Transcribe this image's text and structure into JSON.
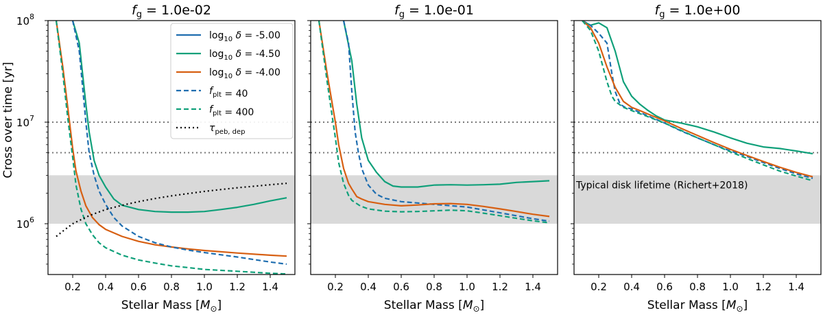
{
  "figure": {
    "ylabel": "Cross over time [yr]",
    "colors": {
      "blue": "#1f6eb0",
      "green": "#10a07a",
      "orange": "#d75f12",
      "gray_band": "#d9d9d9",
      "ref": "#777777",
      "tau": "#000000"
    }
  },
  "chart_data": [
    {
      "type": "line",
      "title_prefix": "f",
      "title_sub": "g",
      "title_value": "= 1.0e-02",
      "xlabel": "Stellar Mass [",
      "xlabel_sym": "M",
      "xlabel_sub": "⊙",
      "xlabel_end": "]",
      "xlim": [
        0.05,
        1.55
      ],
      "ylim_log10": [
        5.5,
        8
      ],
      "xticks": [
        0.2,
        0.4,
        0.6,
        0.8,
        1.0,
        1.2,
        1.4
      ],
      "xtick_labels": [
        "0.2",
        "0.4",
        "0.6",
        "0.8",
        "1.0",
        "1.2",
        "1.4"
      ],
      "yticks": [
        6,
        7,
        8
      ],
      "ytick_labels": [
        "10",
        "10",
        "10"
      ],
      "ytick_exps": [
        "6",
        "7",
        "8"
      ],
      "band": [
        1000000,
        3000000
      ],
      "ref_lines": [
        10000000,
        5000000
      ],
      "legend": {
        "entries": [
          {
            "prefix": "log",
            "sub": "10",
            "sym": " δ",
            "value": " = -5.00",
            "color": "blue",
            "style": "solid"
          },
          {
            "prefix": "log",
            "sub": "10",
            "sym": " δ",
            "value": " = -4.50",
            "color": "green",
            "style": "solid"
          },
          {
            "prefix": "log",
            "sub": "10",
            "sym": " δ",
            "value": " = -4.00",
            "color": "orange",
            "style": "solid"
          },
          {
            "prefix": "f",
            "sub": "plt",
            "sym": "",
            "value": " = 40",
            "color": "blue",
            "style": "dashed"
          },
          {
            "prefix": "f",
            "sub": "plt",
            "sym": "",
            "value": " = 400",
            "color": "green",
            "style": "dashed"
          },
          {
            "prefix": "τ",
            "sub": "peb, dep",
            "sym": "",
            "value": "",
            "color": "tau",
            "style": "dotted"
          }
        ]
      },
      "annotation": "",
      "series": [
        {
          "name": "log10 delta = -5.00 (hidden)",
          "color": "blue",
          "style": "solid",
          "x": [
            0.1,
            0.2,
            0.3,
            0.4,
            0.6,
            0.8,
            1.0,
            1.2,
            1.5
          ],
          "y": [
            300000000,
            100000000,
            10000000,
            3000000,
            1500000,
            1300000,
            1300000,
            1400000,
            1800000
          ]
        },
        {
          "name": "log10 delta = -4.50",
          "color": "green",
          "style": "solid",
          "x": [
            0.2,
            0.24,
            0.28,
            0.3,
            0.33,
            0.36,
            0.4,
            0.45,
            0.5,
            0.6,
            0.7,
            0.8,
            0.9,
            1.0,
            1.1,
            1.2,
            1.3,
            1.4,
            1.5
          ],
          "y": [
            100000000,
            60000000,
            15000000,
            8000000,
            4200000,
            3000000,
            2300000,
            1750000,
            1520000,
            1380000,
            1320000,
            1300000,
            1300000,
            1320000,
            1380000,
            1450000,
            1550000,
            1680000,
            1800000
          ]
        },
        {
          "name": "log10 delta = -4.00",
          "color": "orange",
          "style": "solid",
          "x": [
            0.1,
            0.14,
            0.17,
            0.2,
            0.22,
            0.25,
            0.28,
            0.32,
            0.36,
            0.4,
            0.5,
            0.6,
            0.7,
            0.8,
            0.9,
            1.0,
            1.2,
            1.4,
            1.5
          ],
          "y": [
            100000000,
            35000000,
            14000000,
            5500000,
            3300000,
            2100000,
            1500000,
            1150000,
            980000,
            880000,
            750000,
            670000,
            620000,
            590000,
            565000,
            545000,
            515000,
            490000,
            480000
          ]
        },
        {
          "name": "f_plt = 40",
          "color": "blue",
          "style": "dashed",
          "x": [
            0.2,
            0.24,
            0.28,
            0.3,
            0.33,
            0.36,
            0.4,
            0.45,
            0.5,
            0.6,
            0.7,
            0.8,
            0.9,
            1.0,
            1.2,
            1.4,
            1.5
          ],
          "y": [
            100000000,
            50000000,
            10000000,
            5000000,
            3000000,
            2100000,
            1550000,
            1150000,
            950000,
            750000,
            650000,
            590000,
            550000,
            520000,
            470000,
            420000,
            400000
          ]
        },
        {
          "name": "f_plt = 400",
          "color": "green",
          "style": "dashed",
          "x": [
            0.1,
            0.14,
            0.17,
            0.2,
            0.22,
            0.25,
            0.28,
            0.32,
            0.36,
            0.4,
            0.5,
            0.6,
            0.7,
            0.8,
            0.9,
            1.0,
            1.2,
            1.4,
            1.5
          ],
          "y": [
            100000000,
            30000000,
            11000000,
            4500000,
            2400000,
            1400000,
            1000000,
            780000,
            650000,
            580000,
            490000,
            440000,
            410000,
            385000,
            370000,
            355000,
            340000,
            325000,
            320000
          ]
        },
        {
          "name": "tau_peb,dep",
          "color": "tau",
          "style": "dotted",
          "x": [
            0.1,
            0.15,
            0.2,
            0.3,
            0.4,
            0.5,
            0.6,
            0.7,
            0.8,
            0.9,
            1.0,
            1.1,
            1.2,
            1.3,
            1.4,
            1.5
          ],
          "y": [
            750000,
            870000,
            1000000,
            1200000,
            1380000,
            1520000,
            1650000,
            1770000,
            1880000,
            1980000,
            2080000,
            2170000,
            2260000,
            2340000,
            2420000,
            2500000
          ]
        }
      ]
    },
    {
      "type": "line",
      "title_prefix": "f",
      "title_sub": "g",
      "title_value": "= 1.0e-01",
      "xlabel": "Stellar Mass [",
      "xlabel_sym": "M",
      "xlabel_sub": "⊙",
      "xlabel_end": "]",
      "xlim": [
        0.05,
        1.55
      ],
      "ylim_log10": [
        5.5,
        8
      ],
      "xticks": [
        0.2,
        0.4,
        0.6,
        0.8,
        1.0,
        1.2,
        1.4
      ],
      "xtick_labels": [
        "0.2",
        "0.4",
        "0.6",
        "0.8",
        "1.0",
        "1.2",
        "1.4"
      ],
      "yticks": [
        6,
        7,
        8
      ],
      "ytick_labels": [],
      "ytick_exps": [],
      "band": [
        1000000,
        3000000
      ],
      "ref_lines": [
        10000000,
        5000000
      ],
      "annotation": "",
      "series": [
        {
          "name": "log10 delta = -4.50",
          "color": "green",
          "style": "solid",
          "x": [
            0.25,
            0.3,
            0.33,
            0.36,
            0.4,
            0.45,
            0.5,
            0.55,
            0.6,
            0.7,
            0.8,
            0.9,
            1.0,
            1.1,
            1.2,
            1.3,
            1.4,
            1.5
          ],
          "y": [
            100000000,
            40000000,
            15000000,
            7000000,
            4200000,
            3200000,
            2600000,
            2350000,
            2300000,
            2300000,
            2400000,
            2420000,
            2400000,
            2420000,
            2450000,
            2550000,
            2600000,
            2650000
          ]
        },
        {
          "name": "f_plt = 40",
          "color": "blue",
          "style": "dashed",
          "x": [
            0.25,
            0.28,
            0.3,
            0.32,
            0.34,
            0.36,
            0.4,
            0.45,
            0.5,
            0.6,
            0.8,
            1.0,
            1.2,
            1.4,
            1.5
          ],
          "y": [
            100000000,
            60000000,
            20000000,
            8000000,
            5000000,
            3500000,
            2400000,
            1950000,
            1780000,
            1650000,
            1550000,
            1460000,
            1280000,
            1120000,
            1060000
          ]
        },
        {
          "name": "log10 delta = -4.00",
          "color": "orange",
          "style": "solid",
          "x": [
            0.1,
            0.15,
            0.2,
            0.22,
            0.25,
            0.28,
            0.3,
            0.33,
            0.36,
            0.4,
            0.5,
            0.6,
            0.7,
            0.8,
            0.9,
            1.0,
            1.1,
            1.2,
            1.3,
            1.4,
            1.5
          ],
          "y": [
            100000000,
            30000000,
            10000000,
            6000000,
            3500000,
            2500000,
            2200000,
            1850000,
            1750000,
            1650000,
            1550000,
            1500000,
            1530000,
            1570000,
            1580000,
            1550000,
            1480000,
            1400000,
            1320000,
            1240000,
            1180000
          ]
        },
        {
          "name": "f_plt = 400",
          "color": "green",
          "style": "dashed",
          "x": [
            0.1,
            0.15,
            0.2,
            0.22,
            0.25,
            0.28,
            0.3,
            0.35,
            0.4,
            0.5,
            0.6,
            0.7,
            0.8,
            0.9,
            1.0,
            1.1,
            1.2,
            1.3,
            1.4,
            1.5
          ],
          "y": [
            100000000,
            25000000,
            7000000,
            4000000,
            2500000,
            1900000,
            1700000,
            1500000,
            1400000,
            1330000,
            1310000,
            1320000,
            1340000,
            1360000,
            1340000,
            1270000,
            1200000,
            1130000,
            1070000,
            1020000
          ]
        }
      ]
    },
    {
      "type": "line",
      "title_prefix": "f",
      "title_sub": "g",
      "title_value": "= 1.0e+00",
      "xlabel": "Stellar Mass [",
      "xlabel_sym": "M",
      "xlabel_sub": "⊙",
      "xlabel_end": "]",
      "xlim": [
        0.05,
        1.55
      ],
      "ylim_log10": [
        5.5,
        8
      ],
      "xticks": [
        0.2,
        0.4,
        0.6,
        0.8,
        1.0,
        1.2,
        1.4
      ],
      "xtick_labels": [
        "0.2",
        "0.4",
        "0.6",
        "0.8",
        "1.0",
        "1.2",
        "1.4"
      ],
      "yticks": [
        6,
        7,
        8
      ],
      "ytick_labels": [],
      "ytick_exps": [],
      "band": [
        1000000,
        3000000
      ],
      "ref_lines": [
        10000000,
        5000000
      ],
      "annotation": "Typical disk lifetime (Richert+2018)",
      "series": [
        {
          "name": "log10 delta = -4.50",
          "color": "green",
          "style": "solid",
          "x": [
            0.1,
            0.15,
            0.2,
            0.25,
            0.3,
            0.35,
            0.4,
            0.45,
            0.5,
            0.55,
            0.6,
            0.7,
            0.8,
            0.9,
            1.0,
            1.1,
            1.2,
            1.3,
            1.4,
            1.5
          ],
          "y": [
            100000000,
            90000000,
            95000000,
            85000000,
            50000000,
            25000000,
            18000000,
            15000000,
            13000000,
            11500000,
            10500000,
            9800000,
            9000000,
            8000000,
            7000000,
            6200000,
            5700000,
            5500000,
            5200000,
            4900000
          ]
        },
        {
          "name": "f_plt = 40",
          "color": "blue",
          "style": "dashed",
          "x": [
            0.1,
            0.15,
            0.2,
            0.25,
            0.28,
            0.3,
            0.33,
            0.36,
            0.4,
            0.5,
            0.6,
            0.7,
            0.8,
            0.9,
            1.0,
            1.1,
            1.2,
            1.3,
            1.4,
            1.5
          ],
          "y": [
            100000000,
            90000000,
            75000000,
            60000000,
            30000000,
            20000000,
            15000000,
            14000000,
            13500000,
            11500000,
            9800000,
            8200000,
            7000000,
            6000000,
            5200000,
            4600000,
            4000000,
            3500000,
            3100000,
            2800000
          ]
        },
        {
          "name": "log10 delta = -4.00",
          "color": "orange",
          "style": "solid",
          "x": [
            0.1,
            0.15,
            0.2,
            0.25,
            0.3,
            0.35,
            0.4,
            0.45,
            0.5,
            0.6,
            0.7,
            0.8,
            0.9,
            1.0,
            1.1,
            1.2,
            1.3,
            1.4,
            1.5
          ],
          "y": [
            100000000,
            85000000,
            60000000,
            35000000,
            22000000,
            16000000,
            14000000,
            13000000,
            12000000,
            10300000,
            8700000,
            7400000,
            6300000,
            5400000,
            4700000,
            4100000,
            3600000,
            3200000,
            2900000
          ]
        },
        {
          "name": "f_plt = 400",
          "color": "green",
          "style": "dashed",
          "x": [
            0.1,
            0.15,
            0.2,
            0.25,
            0.28,
            0.3,
            0.35,
            0.4,
            0.5,
            0.6,
            0.7,
            0.8,
            0.9,
            1.0,
            1.1,
            1.2,
            1.3,
            1.4,
            1.5
          ],
          "y": [
            100000000,
            80000000,
            50000000,
            25000000,
            18000000,
            16000000,
            14000000,
            13000000,
            11300000,
            9800000,
            8300000,
            7000000,
            6000000,
            5100000,
            4400000,
            3800000,
            3300000,
            2950000,
            2650000
          ]
        }
      ]
    }
  ]
}
